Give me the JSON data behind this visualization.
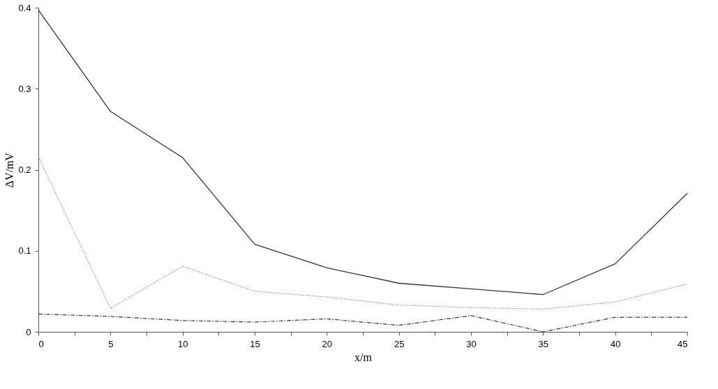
{
  "chart_data": {
    "type": "line",
    "xlabel": "x/m",
    "ylabel": "ΔV/mV",
    "x": [
      0,
      5,
      10,
      15,
      20,
      25,
      30,
      35,
      40,
      45
    ],
    "series": [
      {
        "color": "#333333",
        "line_style": "solid",
        "values": [
          0.397,
          0.272,
          0.215,
          0.108,
          0.079,
          0.06,
          0.053,
          0.046,
          0.084,
          0.171
        ]
      },
      {
        "color": "#888888",
        "line_style": "dotted",
        "values": [
          0.216,
          0.029,
          0.081,
          0.05,
          0.043,
          0.033,
          0.03,
          0.028,
          0.037,
          0.059
        ]
      },
      {
        "color": "#333333",
        "line_style": "dashed",
        "values": [
          0.022,
          0.019,
          0.014,
          0.012,
          0.016,
          0.008,
          0.02,
          0.0,
          0.018,
          0.018
        ]
      }
    ],
    "xlim": [
      0,
      45
    ],
    "xticks": [
      0,
      {
        "value": 2.5,
        "label": null
      },
      5,
      {
        "value": 7.5,
        "label": null
      },
      10,
      {
        "value": 12.5,
        "label": null
      },
      15,
      {
        "value": 17.5,
        "label": null
      },
      20,
      {
        "value": 22.5,
        "label": null
      },
      25,
      {
        "value": 27.5,
        "label": null
      },
      30,
      {
        "value": 32.5,
        "label": null
      },
      35,
      {
        "value": 37.5,
        "label": null
      },
      40,
      {
        "value": 42.5,
        "label": null
      },
      45
    ],
    "ylim": [
      0,
      0.4
    ],
    "yticks": [
      0,
      0.1,
      0.2,
      0.3,
      0.4
    ],
    "grid": false,
    "marker": "none"
  }
}
